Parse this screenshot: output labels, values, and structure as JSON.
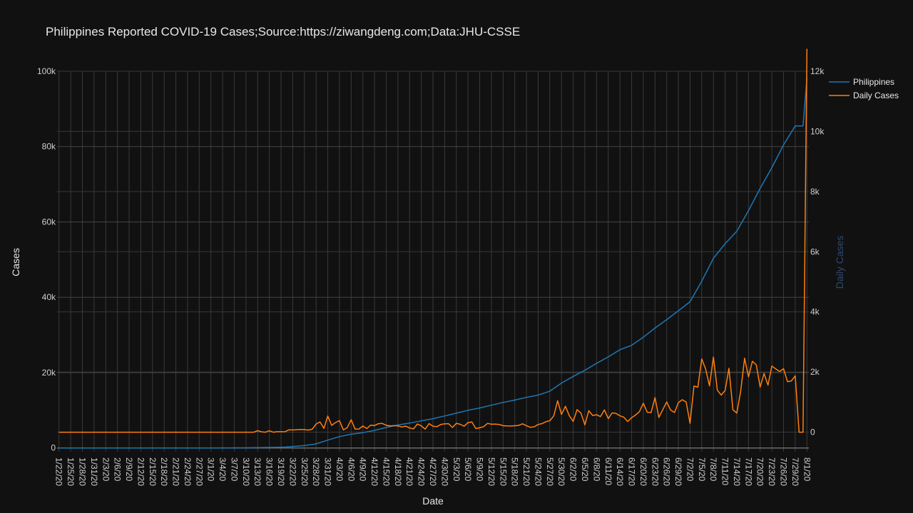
{
  "chart_data": {
    "type": "line",
    "title": "Philippines Reported COVID-19 Cases;Source:https://ziwangdeng.com;Data:JHU-CSSE",
    "xlabel": "Date",
    "ylabel": "Cases",
    "y2label": "Daily Cases",
    "ylim": [
      -1000,
      100000
    ],
    "y2lim": [
      -650,
      12000
    ],
    "yticks": [
      0,
      20000,
      40000,
      60000,
      80000,
      100000
    ],
    "yticklabels": [
      "0",
      "20k",
      "40k",
      "60k",
      "80k",
      "100k"
    ],
    "y2ticks": [
      0,
      2000,
      4000,
      6000,
      8000,
      10000,
      12000
    ],
    "y2ticklabels": [
      "0",
      "2k",
      "4k",
      "6k",
      "8k",
      "10k",
      "12k"
    ],
    "x_start": "1/22/20",
    "x_tick_labels": [
      "1/22/20",
      "1/25/20",
      "1/28/20",
      "1/31/20",
      "2/3/20",
      "2/6/20",
      "2/9/20",
      "2/12/20",
      "2/15/20",
      "2/18/20",
      "2/21/20",
      "2/24/20",
      "2/27/20",
      "3/1/20",
      "3/4/20",
      "3/7/20",
      "3/10/20",
      "3/13/20",
      "3/16/20",
      "3/19/20",
      "3/22/20",
      "3/25/20",
      "3/28/20",
      "3/31/20",
      "4/3/20",
      "4/6/20",
      "4/9/20",
      "4/12/20",
      "4/15/20",
      "4/18/20",
      "4/21/20",
      "4/24/20",
      "4/27/20",
      "4/30/20",
      "5/3/20",
      "5/6/20",
      "5/9/20",
      "5/12/20",
      "5/15/20",
      "5/18/20",
      "5/21/20",
      "5/24/20",
      "5/27/20",
      "5/30/20",
      "6/2/20",
      "6/5/20",
      "6/8/20",
      "6/11/20",
      "6/14/20",
      "6/17/20",
      "6/20/20",
      "6/23/20",
      "6/26/20",
      "6/29/20",
      "7/2/20",
      "7/5/20",
      "7/8/20",
      "7/11/20",
      "7/14/20",
      "7/17/20",
      "7/20/20",
      "7/23/20",
      "7/26/20",
      "7/29/20",
      "8/1/20"
    ],
    "grid": true,
    "legend_position": "top-right",
    "series": [
      {
        "name": "Philippines",
        "axis": "y",
        "color": "#1f77b4",
        "points": [
          [
            "1/22/20",
            0
          ],
          [
            "2/29/20",
            3
          ],
          [
            "3/10/20",
            33
          ],
          [
            "3/15/20",
            140
          ],
          [
            "3/20/20",
            230
          ],
          [
            "3/25/20",
            636
          ],
          [
            "3/28/20",
            1075
          ],
          [
            "3/31/20",
            2084
          ],
          [
            "4/3/20",
            3018
          ],
          [
            "4/6/20",
            3660
          ],
          [
            "4/9/20",
            4076
          ],
          [
            "4/12/20",
            4648
          ],
          [
            "4/15/20",
            5453
          ],
          [
            "4/18/20",
            6087
          ],
          [
            "4/21/20",
            6599
          ],
          [
            "4/24/20",
            7192
          ],
          [
            "4/27/20",
            7777
          ],
          [
            "4/30/20",
            8488
          ],
          [
            "5/3/20",
            9223
          ],
          [
            "5/6/20",
            10004
          ],
          [
            "5/9/20",
            10610
          ],
          [
            "5/12/20",
            11350
          ],
          [
            "5/15/20",
            12091
          ],
          [
            "5/18/20",
            12718
          ],
          [
            "5/21/20",
            13434
          ],
          [
            "5/24/20",
            14035
          ],
          [
            "5/27/20",
            15049
          ],
          [
            "5/30/20",
            17224
          ],
          [
            "6/2/20",
            18997
          ],
          [
            "6/5/20",
            20626
          ],
          [
            "6/8/20",
            22474
          ],
          [
            "6/11/20",
            24175
          ],
          [
            "6/14/20",
            26078
          ],
          [
            "6/17/20",
            27238
          ],
          [
            "6/20/20",
            29400
          ],
          [
            "6/23/20",
            31825
          ],
          [
            "6/26/20",
            34073
          ],
          [
            "6/29/20",
            36438
          ],
          [
            "7/2/20",
            38805
          ],
          [
            "7/5/20",
            44254
          ],
          [
            "7/8/20",
            50359
          ],
          [
            "7/11/20",
            54222
          ],
          [
            "7/14/20",
            57545
          ],
          [
            "7/17/20",
            63001
          ],
          [
            "7/20/20",
            68898
          ],
          [
            "7/23/20",
            74390
          ],
          [
            "7/26/20",
            80448
          ],
          [
            "7/29/20",
            85486
          ],
          [
            "7/31/20",
            85486
          ],
          [
            "8/1/20",
            98232
          ]
        ]
      },
      {
        "name": "Daily Cases",
        "axis": "y2",
        "color": "#ff7f0e",
        "points": [
          [
            "1/22/20",
            0
          ],
          [
            "3/12/20",
            0
          ],
          [
            "3/13/20",
            49
          ],
          [
            "3/14/20",
            12
          ],
          [
            "3/15/20",
            0
          ],
          [
            "3/16/20",
            47
          ],
          [
            "3/17/20",
            0
          ],
          [
            "3/18/20",
            15
          ],
          [
            "3/19/20",
            15
          ],
          [
            "3/20/20",
            13
          ],
          [
            "3/21/20",
            77
          ],
          [
            "3/22/20",
            73
          ],
          [
            "3/23/20",
            82
          ],
          [
            "3/24/20",
            90
          ],
          [
            "3/25/20",
            84
          ],
          [
            "3/26/20",
            71
          ],
          [
            "3/27/20",
            96
          ],
          [
            "3/28/20",
            272
          ],
          [
            "3/29/20",
            343
          ],
          [
            "3/30/20",
            128
          ],
          [
            "3/31/20",
            538
          ],
          [
            "4/1/20",
            227
          ],
          [
            "4/2/20",
            322
          ],
          [
            "4/3/20",
            385
          ],
          [
            "4/4/20",
            76
          ],
          [
            "4/5/20",
            152
          ],
          [
            "4/6/20",
            414
          ],
          [
            "4/7/20",
            104
          ],
          [
            "4/8/20",
            106
          ],
          [
            "4/9/20",
            206
          ],
          [
            "4/10/20",
            119
          ],
          [
            "4/11/20",
            233
          ],
          [
            "4/12/20",
            220
          ],
          [
            "4/13/20",
            284
          ],
          [
            "4/14/20",
            291
          ],
          [
            "4/15/20",
            230
          ],
          [
            "4/16/20",
            207
          ],
          [
            "4/17/20",
            218
          ],
          [
            "4/18/20",
            209
          ],
          [
            "4/19/20",
            172
          ],
          [
            "4/20/20",
            200
          ],
          [
            "4/21/20",
            140
          ],
          [
            "4/22/20",
            111
          ],
          [
            "4/23/20",
            271
          ],
          [
            "4/24/20",
            211
          ],
          [
            "4/25/20",
            102
          ],
          [
            "4/26/20",
            285
          ],
          [
            "4/27/20",
            198
          ],
          [
            "4/28/20",
            181
          ],
          [
            "4/29/20",
            254
          ],
          [
            "4/30/20",
            276
          ],
          [
            "5/1/20",
            284
          ],
          [
            "5/2/20",
            156
          ],
          [
            "5/3/20",
            295
          ],
          [
            "5/4/20",
            262
          ],
          [
            "5/5/20",
            199
          ],
          [
            "5/6/20",
            320
          ],
          [
            "5/7/20",
            339
          ],
          [
            "5/8/20",
            120
          ],
          [
            "5/9/20",
            147
          ],
          [
            "5/10/20",
            184
          ],
          [
            "5/11/20",
            292
          ],
          [
            "5/12/20",
            264
          ],
          [
            "5/13/20",
            268
          ],
          [
            "5/14/20",
            258
          ],
          [
            "5/15/20",
            215
          ],
          [
            "5/16/20",
            208
          ],
          [
            "5/17/20",
            205
          ],
          [
            "5/18/20",
            214
          ],
          [
            "5/19/20",
            224
          ],
          [
            "5/20/20",
            279
          ],
          [
            "5/21/20",
            213
          ],
          [
            "5/22/20",
            163
          ],
          [
            "5/23/20",
            180
          ],
          [
            "5/24/20",
            258
          ],
          [
            "5/25/20",
            284
          ],
          [
            "5/26/20",
            350
          ],
          [
            "5/27/20",
            380
          ],
          [
            "5/28/20",
            539
          ],
          [
            "5/29/20",
            1046
          ],
          [
            "5/30/20",
            590
          ],
          [
            "5/31/20",
            862
          ],
          [
            "6/1/20",
            552
          ],
          [
            "6/2/20",
            359
          ],
          [
            "6/3/20",
            751
          ],
          [
            "6/4/20",
            634
          ],
          [
            "6/5/20",
            244
          ],
          [
            "6/6/20",
            714
          ],
          [
            "6/7/20",
            555
          ],
          [
            "6/8/20",
            579
          ],
          [
            "6/9/20",
            518
          ],
          [
            "6/10/20",
            740
          ],
          [
            "6/11/20",
            450
          ],
          [
            "6/12/20",
            640
          ],
          [
            "6/13/20",
            623
          ],
          [
            "6/14/20",
            545
          ],
          [
            "6/15/20",
            497
          ],
          [
            "6/16/20",
            355
          ],
          [
            "6/17/20",
            482
          ],
          [
            "6/18/20",
            570
          ],
          [
            "6/19/20",
            682
          ],
          [
            "6/20/20",
            964
          ],
          [
            "6/21/20",
            663
          ],
          [
            "6/22/20",
            652
          ],
          [
            "6/23/20",
            1150
          ],
          [
            "6/24/20",
            490
          ],
          [
            "6/25/20",
            751
          ],
          [
            "6/26/20",
            1006
          ],
          [
            "6/27/20",
            737
          ],
          [
            "6/28/20",
            653
          ],
          [
            "6/29/20",
            985
          ],
          [
            "6/30/20",
            1080
          ],
          [
            "7/1/20",
            1000
          ],
          [
            "7/2/20",
            294
          ],
          [
            "7/3/20",
            1531
          ],
          [
            "7/4/20",
            1497
          ],
          [
            "7/5/20",
            2434
          ],
          [
            "7/6/20",
            2099
          ],
          [
            "7/7/20",
            1540
          ],
          [
            "7/8/20",
            2498
          ],
          [
            "7/9/20",
            1395
          ],
          [
            "7/10/20",
            1233
          ],
          [
            "7/11/20",
            1387
          ],
          [
            "7/12/20",
            2124
          ],
          [
            "7/13/20",
            747
          ],
          [
            "7/14/20",
            634
          ],
          [
            "7/15/20",
            1357
          ],
          [
            "7/16/20",
            2457
          ],
          [
            "7/17/20",
            1841
          ],
          [
            "7/18/20",
            2357
          ],
          [
            "7/19/20",
            2241
          ],
          [
            "7/20/20",
            1498
          ],
          [
            "7/21/20",
            1951
          ],
          [
            "7/22/20",
            1566
          ],
          [
            "7/23/20",
            2200
          ],
          [
            "7/24/20",
            2103
          ],
          [
            "7/25/20",
            2018
          ],
          [
            "7/26/20",
            2110
          ],
          [
            "7/27/20",
            1678
          ],
          [
            "7/28/20",
            1703
          ],
          [
            "7/29/20",
            1874
          ],
          [
            "7/30/20",
            0
          ],
          [
            "7/31/20",
            0
          ],
          [
            "8/1/20",
            12746
          ]
        ]
      }
    ]
  }
}
